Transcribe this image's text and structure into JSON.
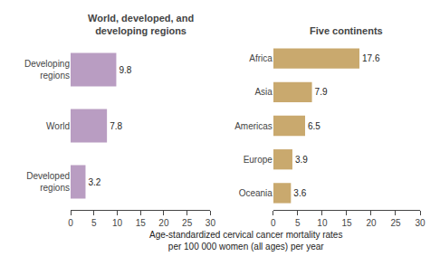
{
  "chart_data": [
    {
      "type": "bar",
      "orientation": "horizontal",
      "title": "World, developed, and\ndeveloping regions",
      "xlabel": "Age-standardized cervical cancer mortality rates\nper 100 000 women (all ages) per year",
      "categories": [
        "Developing\nregions",
        "World",
        "Developed\nregions"
      ],
      "values": [
        9.8,
        7.8,
        3.2
      ],
      "color": "#b99dc2",
      "xlim": [
        0,
        30
      ],
      "xticks": [
        0,
        5,
        10,
        15,
        20,
        25,
        30
      ],
      "grid": false,
      "data_labels": true
    },
    {
      "type": "bar",
      "orientation": "horizontal",
      "title": "Five continents",
      "categories": [
        "Africa",
        "Asia",
        "Americas",
        "Europe",
        "Oceania"
      ],
      "values": [
        17.6,
        7.9,
        6.5,
        3.9,
        3.6
      ],
      "color": "#c9a96e",
      "xlim": [
        0,
        30
      ],
      "xticks": [
        0,
        5,
        10,
        15,
        20,
        25,
        30
      ],
      "grid": false,
      "data_labels": true
    }
  ]
}
